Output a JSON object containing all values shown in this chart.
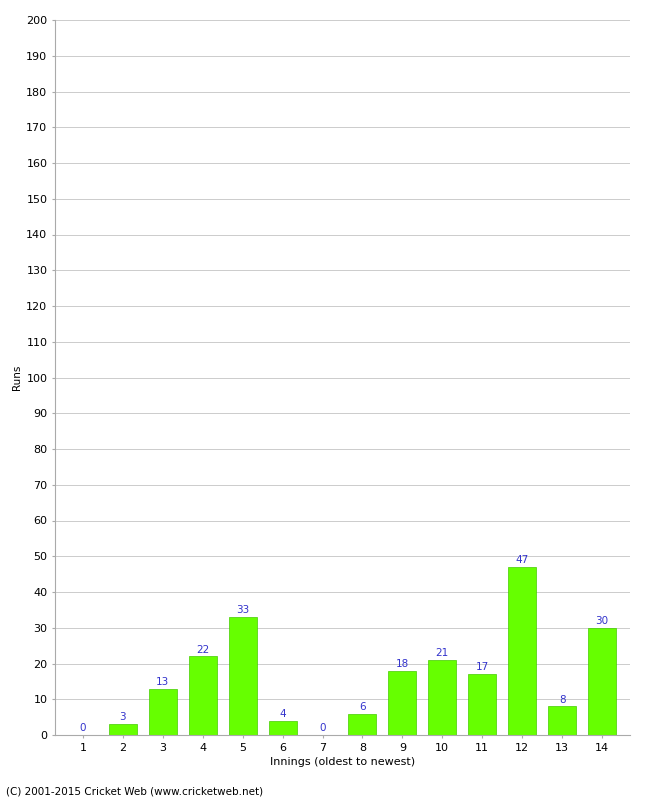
{
  "title": "",
  "innings": [
    1,
    2,
    3,
    4,
    5,
    6,
    7,
    8,
    9,
    10,
    11,
    12,
    13,
    14
  ],
  "values": [
    0,
    3,
    13,
    22,
    33,
    4,
    0,
    6,
    18,
    21,
    17,
    47,
    8,
    30
  ],
  "bar_color": "#66ff00",
  "bar_edge_color": "#44cc00",
  "label_color": "#3333cc",
  "ylabel": "Runs",
  "xlabel": "Innings (oldest to newest)",
  "ylim": [
    0,
    200
  ],
  "ytick_step": 10,
  "footer": "(C) 2001-2015 Cricket Web (www.cricketweb.net)",
  "background_color": "#ffffff",
  "grid_color": "#cccccc",
  "axis_fontsize": 8,
  "label_fontsize": 7.5,
  "footer_fontsize": 7.5,
  "ylabel_fontsize": 7.5
}
